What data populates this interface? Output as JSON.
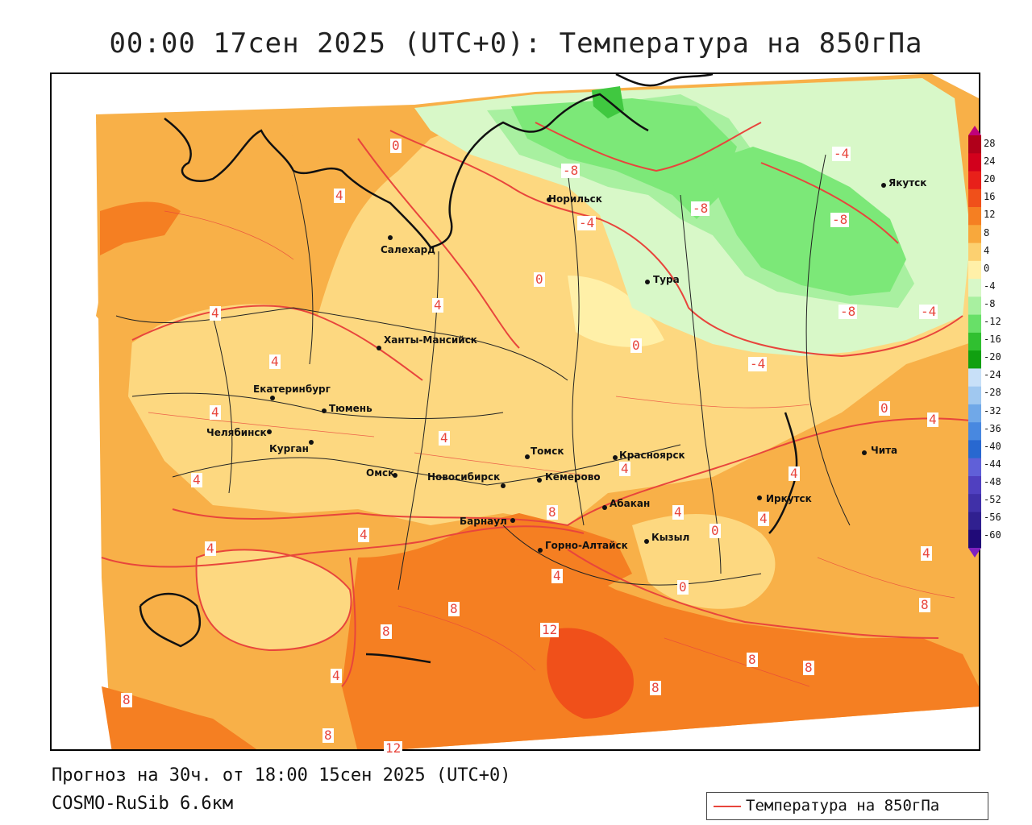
{
  "title": "00:00 17сен 2025 (UTC+0): Температура на 850гПа",
  "footer": {
    "line1": "Прогноз на 30ч. от 18:00 15сен 2025 (UTC+0)",
    "line2": "COSMO-RuSib 6.6км"
  },
  "legend": {
    "label": "Температура на 850гПа",
    "color": "#e8453c"
  },
  "colorbar": {
    "values": [
      "28",
      "24",
      "20",
      "16",
      "12",
      "8",
      "4",
      "0",
      "-4",
      "-8",
      "-12",
      "-16",
      "-20",
      "-24",
      "-28",
      "-32",
      "-36",
      "-40",
      "-44",
      "-48",
      "-52",
      "-56",
      "-60"
    ],
    "colors": [
      "#b0001a",
      "#d2001c",
      "#e8201a",
      "#f0501a",
      "#f57f22",
      "#f8a83c",
      "#fcd070",
      "#fff0a8",
      "#d8f8c8",
      "#a8f0a0",
      "#68e068",
      "#30c030",
      "#10a010",
      "#c8e0f8",
      "#a0c8f0",
      "#70a8e8",
      "#4888e0",
      "#2868d0",
      "#6060d8",
      "#5040c0",
      "#4030a8",
      "#302090",
      "#200a78"
    ]
  },
  "cities": [
    {
      "name": "Якутск"
    },
    {
      "name": "Норильск"
    },
    {
      "name": "Салехард"
    },
    {
      "name": "Тура"
    },
    {
      "name": "Ханты-Мансийск"
    },
    {
      "name": "Екатеринбург"
    },
    {
      "name": "Тюмень"
    },
    {
      "name": "Челябинск"
    },
    {
      "name": "Курган"
    },
    {
      "name": "Омск"
    },
    {
      "name": "Новосибирск"
    },
    {
      "name": "Томск"
    },
    {
      "name": "Кемерово"
    },
    {
      "name": "Красноярск"
    },
    {
      "name": "Барнаул"
    },
    {
      "name": "Абакан"
    },
    {
      "name": "Горно-Алтайск"
    },
    {
      "name": "Кызыл"
    },
    {
      "name": "Иркутск"
    },
    {
      "name": "Чита"
    }
  ],
  "contour_labels": [
    "0",
    "-8",
    "-4",
    "-8",
    "-4",
    "-8",
    "-8",
    "-4",
    "-4",
    "0",
    "0",
    "0",
    "4",
    "4",
    "4",
    "4",
    "4",
    "4",
    "4",
    "4",
    "4",
    "4",
    "4",
    "4",
    "4",
    "4",
    "4",
    "4",
    "4",
    "8",
    "8",
    "8",
    "8",
    "8",
    "8",
    "8",
    "8",
    "8",
    "12",
    "12",
    "0",
    "0"
  ]
}
